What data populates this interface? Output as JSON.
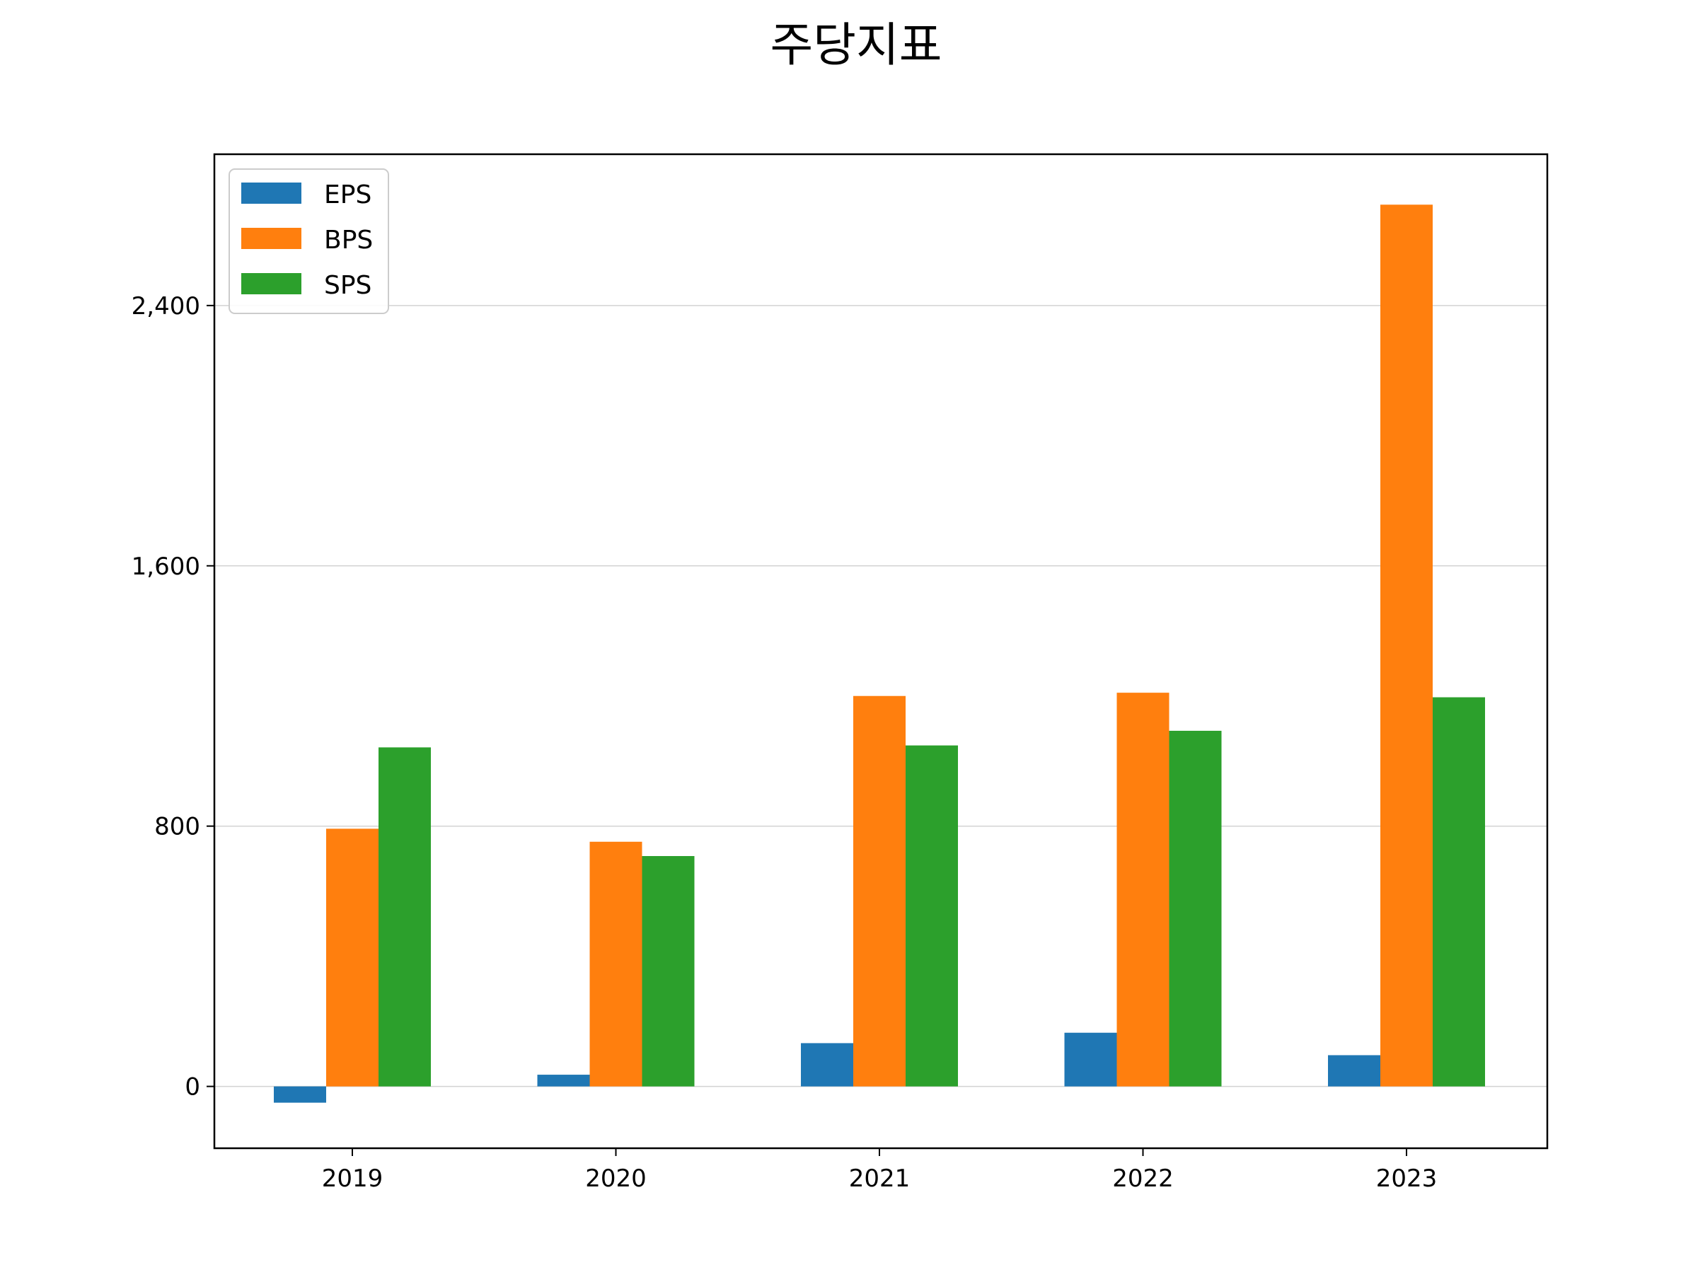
{
  "chart_data": {
    "type": "bar",
    "title": "주당지표",
    "xlabel": "",
    "ylabel": "",
    "categories": [
      "2019",
      "2020",
      "2021",
      "2022",
      "2023"
    ],
    "series": [
      {
        "name": "EPS",
        "color": "#1f77b4",
        "values": [
          -50,
          36,
          133,
          165,
          96
        ]
      },
      {
        "name": "BPS",
        "color": "#ff7f0e",
        "values": [
          792,
          752,
          1200,
          1210,
          2710
        ]
      },
      {
        "name": "SPS",
        "color": "#2ca02c",
        "values": [
          1042,
          708,
          1048,
          1093,
          1196
        ]
      }
    ],
    "ylim": [
      -190,
      2865
    ],
    "yticks": [
      0,
      800,
      1600,
      2400
    ],
    "ytick_labels": [
      "0",
      "800",
      "1,600",
      "2,400"
    ],
    "grid": "y",
    "legend_position": "top-left"
  }
}
